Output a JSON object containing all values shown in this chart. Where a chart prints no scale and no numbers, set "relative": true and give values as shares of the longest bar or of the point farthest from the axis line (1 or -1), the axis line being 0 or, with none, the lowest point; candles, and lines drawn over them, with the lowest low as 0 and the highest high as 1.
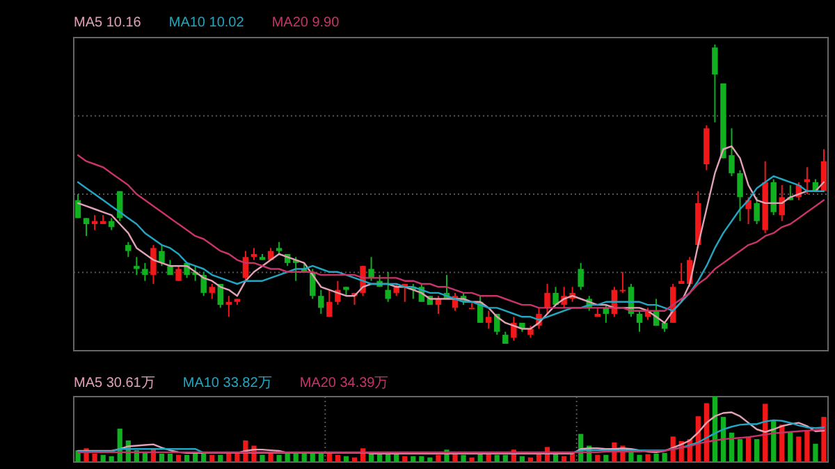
{
  "chart_data": [
    {
      "type": "candlestick",
      "relative": true,
      "grid": "y",
      "legend": "top left",
      "line_style": "solid",
      "categories": [
        null,
        null,
        null,
        null,
        null,
        null,
        null,
        null,
        null,
        null,
        null,
        null,
        null,
        null,
        null,
        null,
        null,
        null,
        null,
        null,
        null,
        null,
        null,
        null,
        null,
        null,
        null,
        null,
        null,
        null,
        null,
        null,
        null,
        null,
        null,
        null,
        null,
        null,
        null,
        null,
        null,
        null,
        null,
        null,
        null,
        null,
        null,
        null,
        null,
        null,
        null,
        null,
        null,
        null,
        null,
        null,
        null,
        null,
        null,
        null,
        null,
        null,
        null,
        null,
        null,
        null,
        null,
        null,
        null,
        null,
        null,
        null,
        null,
        null,
        null,
        null,
        null,
        null,
        null,
        null,
        null,
        null,
        null,
        null,
        null,
        null,
        null,
        null,
        null,
        null
      ],
      "ohlc": [
        [
          0.48,
          0.5,
          0.42,
          0.42
        ],
        [
          0.42,
          0.42,
          0.36,
          0.4
        ],
        [
          0.4,
          0.43,
          0.38,
          0.41
        ],
        [
          0.4,
          0.43,
          0.4,
          0.41
        ],
        [
          0.41,
          0.42,
          0.38,
          0.39
        ],
        [
          0.51,
          0.51,
          0.41,
          0.42
        ],
        [
          0.33,
          0.34,
          0.29,
          0.31
        ],
        [
          0.26,
          0.29,
          0.23,
          0.25
        ],
        [
          0.25,
          0.27,
          0.21,
          0.23
        ],
        [
          0.23,
          0.33,
          0.2,
          0.32
        ],
        [
          0.31,
          0.33,
          0.26,
          0.27
        ],
        [
          0.26,
          0.28,
          0.23,
          0.23
        ],
        [
          0.21,
          0.26,
          0.21,
          0.25
        ],
        [
          0.27,
          0.27,
          0.22,
          0.23
        ],
        [
          0.24,
          0.26,
          0.21,
          0.23
        ],
        [
          0.23,
          0.24,
          0.16,
          0.17
        ],
        [
          0.17,
          0.2,
          0.15,
          0.19
        ],
        [
          0.2,
          0.2,
          0.12,
          0.13
        ],
        [
          0.13,
          0.16,
          0.09,
          0.14
        ],
        [
          0.14,
          0.15,
          0.13,
          0.15
        ],
        [
          0.22,
          0.31,
          0.21,
          0.29
        ],
        [
          0.29,
          0.32,
          0.28,
          0.3
        ],
        [
          0.29,
          0.3,
          0.28,
          0.28
        ],
        [
          0.28,
          0.32,
          0.28,
          0.31
        ],
        [
          0.32,
          0.34,
          0.3,
          0.31
        ],
        [
          0.3,
          0.3,
          0.26,
          0.27
        ],
        [
          0.28,
          0.29,
          0.21,
          0.27
        ],
        [
          0.25,
          0.27,
          0.24,
          0.24
        ],
        [
          0.24,
          0.25,
          0.15,
          0.16
        ],
        [
          0.16,
          0.18,
          0.1,
          0.12
        ],
        [
          0.09,
          0.18,
          0.09,
          0.14
        ],
        [
          0.14,
          0.21,
          0.13,
          0.18
        ],
        [
          0.19,
          0.19,
          0.16,
          0.18
        ],
        [
          0.16,
          0.17,
          0.13,
          0.17
        ],
        [
          0.17,
          0.26,
          0.16,
          0.26
        ],
        [
          0.25,
          0.29,
          0.21,
          0.22
        ],
        [
          0.21,
          0.23,
          0.19,
          0.19
        ],
        [
          0.18,
          0.24,
          0.14,
          0.15
        ],
        [
          0.17,
          0.2,
          0.16,
          0.19
        ],
        [
          0.19,
          0.2,
          0.14,
          0.2
        ],
        [
          0.19,
          0.2,
          0.15,
          0.18
        ],
        [
          0.19,
          0.2,
          0.14,
          0.14
        ],
        [
          0.16,
          0.16,
          0.13,
          0.13
        ],
        [
          0.13,
          0.16,
          0.1,
          0.15
        ],
        [
          0.17,
          0.23,
          0.15,
          0.15
        ],
        [
          0.12,
          0.17,
          0.11,
          0.16
        ],
        [
          0.16,
          0.17,
          0.13,
          0.14
        ],
        [
          0.12,
          0.14,
          0.12,
          0.12
        ],
        [
          0.14,
          0.16,
          0.07,
          0.07
        ],
        [
          0.07,
          0.11,
          0.05,
          0.09
        ],
        [
          0.1,
          0.1,
          0.03,
          0.04
        ],
        [
          0.03,
          0.04,
          0,
          0
        ],
        [
          0.02,
          0.09,
          0.01,
          0.07
        ],
        [
          0.07,
          0.07,
          0.04,
          0.05
        ],
        [
          0.03,
          0.06,
          0.02,
          0.05
        ],
        [
          0.06,
          0.12,
          0.05,
          0.1
        ],
        [
          0.12,
          0.2,
          0.1,
          0.17
        ],
        [
          0.17,
          0.19,
          0.13,
          0.13
        ],
        [
          0.13,
          0.19,
          0.12,
          0.16
        ],
        [
          0.15,
          0.19,
          0.14,
          0.17
        ],
        [
          0.25,
          0.27,
          0.18,
          0.19
        ],
        [
          0.15,
          0.16,
          0.11,
          0.12
        ],
        [
          0.09,
          0.12,
          0.09,
          0.1
        ],
        [
          0.12,
          0.13,
          0.07,
          0.1
        ],
        [
          0.1,
          0.19,
          0.09,
          0.18
        ],
        [
          0.18,
          0.24,
          0.17,
          0.18
        ],
        [
          0.19,
          0.2,
          0.09,
          0.1
        ],
        [
          0.1,
          0.11,
          0.04,
          0.07
        ],
        [
          0.09,
          0.12,
          0.08,
          0.11
        ],
        [
          0.11,
          0.15,
          0.06,
          0.06
        ],
        [
          0.07,
          0.07,
          0.04,
          0.05
        ],
        [
          0.07,
          0.2,
          0.07,
          0.19
        ],
        [
          0.2,
          0.27,
          0.2,
          0.21
        ],
        [
          0.2,
          0.29,
          0.19,
          0.28
        ],
        [
          0.33,
          0.51,
          0.32,
          0.47
        ],
        [
          0.6,
          0.73,
          0.58,
          0.72
        ],
        [
          0.99,
          1,
          0.74,
          0.9
        ],
        [
          0.87,
          0.87,
          0.62,
          0.62
        ],
        [
          0.63,
          0.72,
          0.56,
          0.57
        ],
        [
          0.57,
          0.58,
          0.41,
          0.49
        ],
        [
          0.45,
          0.49,
          0.4,
          0.48
        ],
        [
          0.47,
          0.49,
          0.4,
          0.41
        ],
        [
          0.38,
          0.61,
          0.37,
          0.54
        ],
        [
          0.54,
          0.55,
          0.43,
          0.44
        ],
        [
          0.43,
          0.53,
          0.41,
          0.49
        ],
        [
          0.49,
          0.53,
          0.48,
          0.48
        ],
        [
          0.49,
          0.54,
          0.48,
          0.53
        ],
        [
          0.54,
          0.59,
          0.5,
          0.55
        ],
        [
          0.54,
          0.55,
          0.51,
          0.51
        ],
        [
          0.51,
          0.65,
          0.51,
          0.61
        ]
      ],
      "series": [
        {
          "type": "line",
          "name": "MA5 10.16",
          "color": "#e0a2b4",
          "values": [
            0.47,
            0.46,
            0.45,
            0.44,
            0.43,
            0.4,
            0.37,
            0.32,
            0.3,
            0.28,
            0.27,
            0.26,
            0.26,
            0.26,
            0.24,
            0.22,
            0.21,
            0.19,
            0.18,
            0.16,
            0.21,
            0.24,
            0.26,
            0.28,
            0.3,
            0.29,
            0.28,
            0.27,
            0.23,
            0.19,
            0.18,
            0.17,
            0.16,
            0.16,
            0.19,
            0.2,
            0.2,
            0.2,
            0.19,
            0.19,
            0.18,
            0.17,
            0.15,
            0.15,
            0.15,
            0.15,
            0.15,
            0.14,
            0.14,
            0.12,
            0.09,
            0.07,
            0.06,
            0.05,
            0.05,
            0.07,
            0.1,
            0.13,
            0.15,
            0.16,
            0.15,
            0.14,
            0.13,
            0.13,
            0.12,
            0.12,
            0.12,
            0.12,
            0.11,
            0.09,
            0.07,
            0.11,
            0.14,
            0.2,
            0.33,
            0.45,
            0.57,
            0.65,
            0.66,
            0.62,
            0.53,
            0.48,
            0.47,
            0.47,
            0.47,
            0.49,
            0.5,
            0.51,
            0.51,
            0.54
          ]
        },
        {
          "type": "line",
          "name": "MA10 10.02",
          "color": "#22a6c2",
          "values": [
            0.54,
            0.52,
            0.5,
            0.48,
            0.46,
            0.44,
            0.42,
            0.4,
            0.37,
            0.35,
            0.33,
            0.32,
            0.3,
            0.27,
            0.26,
            0.25,
            0.23,
            0.22,
            0.21,
            0.2,
            0.21,
            0.21,
            0.21,
            0.22,
            0.23,
            0.24,
            0.25,
            0.25,
            0.26,
            0.25,
            0.24,
            0.24,
            0.23,
            0.22,
            0.21,
            0.2,
            0.2,
            0.2,
            0.2,
            0.19,
            0.19,
            0.18,
            0.17,
            0.17,
            0.16,
            0.15,
            0.14,
            0.14,
            0.13,
            0.12,
            0.12,
            0.11,
            0.1,
            0.09,
            0.09,
            0.08,
            0.09,
            0.1,
            0.11,
            0.12,
            0.12,
            0.13,
            0.13,
            0.14,
            0.14,
            0.14,
            0.14,
            0.14,
            0.13,
            0.13,
            0.12,
            0.11,
            0.14,
            0.17,
            0.21,
            0.26,
            0.32,
            0.37,
            0.41,
            0.45,
            0.48,
            0.52,
            0.54,
            0.56,
            0.55,
            0.54,
            0.53,
            0.51,
            0.51,
            0.51
          ]
        },
        {
          "type": "line",
          "name": "MA20 9.90",
          "color": "#c8346a",
          "values": [
            0.63,
            0.61,
            0.6,
            0.59,
            0.57,
            0.55,
            0.53,
            0.5,
            0.48,
            0.46,
            0.44,
            0.42,
            0.4,
            0.38,
            0.36,
            0.35,
            0.33,
            0.31,
            0.3,
            0.28,
            0.27,
            0.27,
            0.26,
            0.25,
            0.25,
            0.24,
            0.24,
            0.24,
            0.24,
            0.23,
            0.23,
            0.23,
            0.23,
            0.23,
            0.22,
            0.22,
            0.22,
            0.22,
            0.22,
            0.21,
            0.21,
            0.2,
            0.2,
            0.19,
            0.19,
            0.18,
            0.17,
            0.17,
            0.16,
            0.16,
            0.16,
            0.15,
            0.14,
            0.13,
            0.13,
            0.12,
            0.12,
            0.12,
            0.12,
            0.12,
            0.12,
            0.12,
            0.12,
            0.12,
            0.12,
            0.12,
            0.11,
            0.11,
            0.11,
            0.11,
            0.11,
            0.13,
            0.15,
            0.17,
            0.2,
            0.22,
            0.25,
            0.27,
            0.29,
            0.31,
            0.33,
            0.34,
            0.36,
            0.37,
            0.39,
            0.4,
            0.42,
            0.44,
            0.46,
            0.48
          ]
        }
      ]
    },
    {
      "type": "bar",
      "relative": true,
      "grid": "x",
      "legend": "top left",
      "line_style": "solid",
      "categories": [
        null,
        null,
        null,
        null,
        null,
        null,
        null,
        null,
        null,
        null,
        null,
        null,
        null,
        null,
        null,
        null,
        null,
        null,
        null,
        null,
        null,
        null,
        null,
        null,
        null,
        null,
        null,
        null,
        null,
        null,
        null,
        null,
        null,
        null,
        null,
        null,
        null,
        null,
        null,
        null,
        null,
        null,
        null,
        null,
        null,
        null,
        null,
        null,
        null,
        null,
        null,
        null,
        null,
        null,
        null,
        null,
        null,
        null,
        null,
        null,
        null,
        null,
        null,
        null,
        null,
        null,
        null,
        null,
        null,
        null,
        null,
        null,
        null,
        null,
        null,
        null,
        null,
        null,
        null,
        null,
        null,
        null,
        null,
        null,
        null,
        null,
        null,
        null,
        null,
        null
      ],
      "values": [
        0.18,
        0.21,
        0.13,
        0.11,
        0.09,
        0.51,
        0.33,
        0.18,
        0.16,
        0.21,
        0.13,
        0.13,
        0.11,
        0.11,
        0.16,
        0.16,
        0.11,
        0.11,
        0.13,
        0.13,
        0.33,
        0.25,
        0.11,
        0.13,
        0.11,
        0.14,
        0.14,
        0.14,
        0.14,
        0.14,
        0.14,
        0.11,
        0.09,
        0.07,
        0.21,
        0.13,
        0.13,
        0.13,
        0.13,
        0.09,
        0.09,
        0.09,
        0.07,
        0.11,
        0.19,
        0.13,
        0.11,
        0.07,
        0.16,
        0.13,
        0.11,
        0.11,
        0.19,
        0.09,
        0.07,
        0.12,
        0.23,
        0.12,
        0.09,
        0.13,
        0.43,
        0.25,
        0.11,
        0.11,
        0.3,
        0.25,
        0.16,
        0.11,
        0.12,
        0.13,
        0.14,
        0.39,
        0.32,
        0.35,
        0.7,
        0.9,
        1,
        0.69,
        0.45,
        0.35,
        0.39,
        0.35,
        0.89,
        0.64,
        0.57,
        0.46,
        0.39,
        0.48,
        0.28,
        0.69
      ],
      "colors": [
        "#10b020",
        "#f01818",
        "#f01818",
        "#10b020",
        "#10b020",
        "#10b020",
        "#10b020",
        "#10b020",
        "#10b020",
        "#f01818",
        "#10b020",
        "#10b020",
        "#f01818",
        "#10b020",
        "#10b020",
        "#10b020",
        "#f01818",
        "#10b020",
        "#f01818",
        "#f01818",
        "#f01818",
        "#f01818",
        "#10b020",
        "#f01818",
        "#10b020",
        "#10b020",
        "#10b020",
        "#10b020",
        "#10b020",
        "#10b020",
        "#f01818",
        "#f01818",
        "#10b020",
        "#f01818",
        "#f01818",
        "#10b020",
        "#10b020",
        "#10b020",
        "#10b020",
        "#f01818",
        "#10b020",
        "#10b020",
        "#10b020",
        "#f01818",
        "#10b020",
        "#f01818",
        "#10b020",
        "#f01818",
        "#10b020",
        "#f01818",
        "#10b020",
        "#10b020",
        "#f01818",
        "#10b020",
        "#f01818",
        "#f01818",
        "#f01818",
        "#10b020",
        "#f01818",
        "#f01818",
        "#10b020",
        "#10b020",
        "#f01818",
        "#10b020",
        "#f01818",
        "#f01818",
        "#10b020",
        "#10b020",
        "#f01818",
        "#10b020",
        "#10b020",
        "#f01818",
        "#f01818",
        "#f01818",
        "#f01818",
        "#f01818",
        "#10b020",
        "#10b020",
        "#10b020",
        "#10b020",
        "#f01818",
        "#10b020",
        "#f01818",
        "#10b020",
        "#f01818",
        "#10b020",
        "#f01818",
        "#f01818",
        "#10b020",
        "#f01818"
      ],
      "series": [
        {
          "type": "line",
          "name": "MA5 30.61万",
          "color": "#e0a2b4",
          "values": [
            0.17,
            0.17,
            0.17,
            0.17,
            0.17,
            0.2,
            0.24,
            0.25,
            0.26,
            0.27,
            0.22,
            0.18,
            0.15,
            0.14,
            0.14,
            0.14,
            0.14,
            0.14,
            0.14,
            0.14,
            0.17,
            0.19,
            0.19,
            0.18,
            0.17,
            0.14,
            0.14,
            0.14,
            0.14,
            0.14,
            0.14,
            0.14,
            0.14,
            0.14,
            0.15,
            0.13,
            0.13,
            0.13,
            0.13,
            0.13,
            0.13,
            0.13,
            0.13,
            0.13,
            0.13,
            0.13,
            0.13,
            0.13,
            0.13,
            0.13,
            0.13,
            0.13,
            0.13,
            0.13,
            0.13,
            0.13,
            0.13,
            0.13,
            0.13,
            0.13,
            0.2,
            0.21,
            0.21,
            0.2,
            0.2,
            0.21,
            0.2,
            0.18,
            0.16,
            0.15,
            0.17,
            0.22,
            0.27,
            0.33,
            0.45,
            0.6,
            0.7,
            0.75,
            0.76,
            0.7,
            0.6,
            0.5,
            0.46,
            0.5,
            0.55,
            0.58,
            0.6,
            0.55,
            0.47,
            0.48
          ]
        },
        {
          "type": "line",
          "name": "MA10 33.82万",
          "color": "#22a6c2",
          "values": [
            0.16,
            0.16,
            0.16,
            0.16,
            0.16,
            0.2,
            0.2,
            0.2,
            0.2,
            0.2,
            0.2,
            0.2,
            0.2,
            0.2,
            0.2,
            0.14,
            0.14,
            0.14,
            0.14,
            0.14,
            0.14,
            0.14,
            0.14,
            0.14,
            0.14,
            0.14,
            0.14,
            0.14,
            0.14,
            0.14,
            0.14,
            0.14,
            0.14,
            0.14,
            0.14,
            0.14,
            0.14,
            0.14,
            0.14,
            0.14,
            0.14,
            0.14,
            0.14,
            0.14,
            0.14,
            0.14,
            0.14,
            0.14,
            0.14,
            0.14,
            0.14,
            0.14,
            0.14,
            0.14,
            0.14,
            0.14,
            0.14,
            0.14,
            0.14,
            0.14,
            0.18,
            0.18,
            0.18,
            0.18,
            0.18,
            0.18,
            0.18,
            0.18,
            0.18,
            0.18,
            0.18,
            0.2,
            0.22,
            0.26,
            0.3,
            0.37,
            0.44,
            0.5,
            0.54,
            0.57,
            0.58,
            0.58,
            0.62,
            0.64,
            0.63,
            0.6,
            0.56,
            0.53,
            0.52,
            0.53
          ]
        },
        {
          "type": "line",
          "name": "MA20 34.39万",
          "color": "#c8346a",
          "values": [
            0.15,
            0.15,
            0.15,
            0.15,
            0.15,
            0.15,
            0.15,
            0.15,
            0.15,
            0.15,
            0.15,
            0.15,
            0.15,
            0.15,
            0.15,
            0.15,
            0.15,
            0.15,
            0.15,
            0.15,
            0.15,
            0.15,
            0.15,
            0.15,
            0.15,
            0.15,
            0.15,
            0.15,
            0.15,
            0.15,
            0.15,
            0.15,
            0.15,
            0.15,
            0.15,
            0.15,
            0.15,
            0.15,
            0.15,
            0.15,
            0.15,
            0.15,
            0.15,
            0.15,
            0.15,
            0.15,
            0.15,
            0.15,
            0.15,
            0.15,
            0.15,
            0.15,
            0.15,
            0.15,
            0.15,
            0.15,
            0.15,
            0.15,
            0.15,
            0.15,
            0.15,
            0.15,
            0.15,
            0.16,
            0.16,
            0.16,
            0.16,
            0.16,
            0.17,
            0.17,
            0.17,
            0.2,
            0.22,
            0.24,
            0.28,
            0.31,
            0.33,
            0.35,
            0.36,
            0.37,
            0.38,
            0.4,
            0.42,
            0.44,
            0.45,
            0.46,
            0.47,
            0.48,
            0.49,
            0.5
          ]
        }
      ]
    }
  ]
}
